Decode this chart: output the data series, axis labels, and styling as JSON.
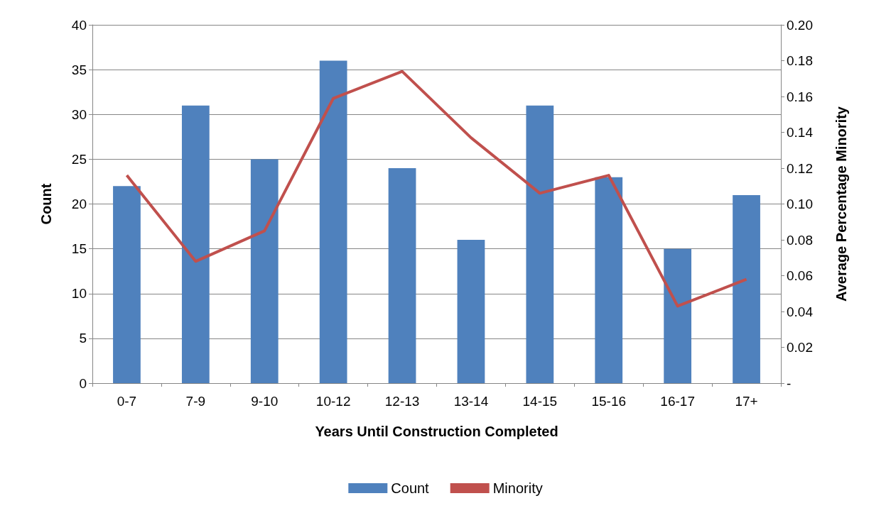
{
  "chart_data": {
    "type": "bar",
    "xlabel": "Years Until Construction Completed",
    "ylabel": "Count",
    "y2label": "Average Percentage Minority",
    "categories": [
      "0-7",
      "7-9",
      "9-10",
      "10-12",
      "12-13",
      "13-14",
      "14-15",
      "15-16",
      "16-17",
      "17+"
    ],
    "series": [
      {
        "name": "Count",
        "color": "#4f81bd",
        "values": [
          22,
          31,
          25,
          36,
          24,
          16,
          31,
          23,
          15,
          21
        ]
      },
      {
        "name": "Minority",
        "type": "line",
        "axis": "y2",
        "color": "#c0504d",
        "marker": "none",
        "values": [
          0.116,
          0.068,
          0.085,
          0.159,
          0.174,
          0.137,
          0.106,
          0.116,
          0.043,
          0.058
        ]
      }
    ],
    "ylim": [
      0,
      40
    ],
    "yticks": [
      0,
      5,
      10,
      15,
      20,
      25,
      30,
      35,
      40
    ],
    "y2lim": [
      0,
      0.2
    ],
    "y2ticks": [
      {
        "value": 0,
        "label": "-"
      },
      {
        "value": 0.02,
        "label": "0.02"
      },
      {
        "value": 0.04,
        "label": "0.04"
      },
      {
        "value": 0.06,
        "label": "0.06"
      },
      {
        "value": 0.08,
        "label": "0.08"
      },
      {
        "value": 0.1,
        "label": "0.10"
      },
      {
        "value": 0.12,
        "label": "0.12"
      },
      {
        "value": 0.14,
        "label": "0.14"
      },
      {
        "value": 0.16,
        "label": "0.16"
      },
      {
        "value": 0.18,
        "label": "0.18"
      },
      {
        "value": 0.2,
        "label": "0.20"
      }
    ],
    "grid": "y",
    "legend": "bottom"
  }
}
